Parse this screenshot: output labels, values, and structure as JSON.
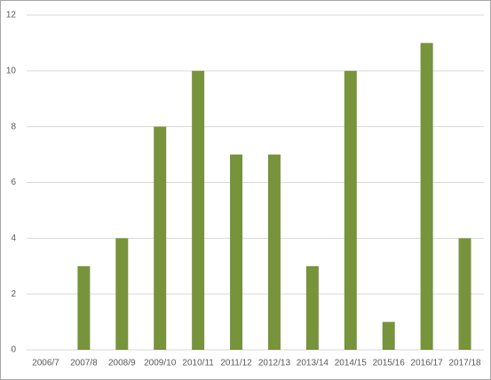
{
  "chart_data": {
    "type": "bar",
    "categories": [
      "2006/7",
      "2007/8",
      "2008/9",
      "2009/10",
      "2010/11",
      "2011/12",
      "2012/13",
      "2013/14",
      "2014/15",
      "2015/16",
      "2016/17",
      "2017/18"
    ],
    "values": [
      0,
      3,
      4,
      8,
      10,
      7,
      7,
      3,
      10,
      1,
      11,
      4
    ],
    "color": "#77933c",
    "ylim": [
      0,
      12
    ],
    "yticks": [
      0,
      2,
      4,
      6,
      8,
      10,
      12
    ],
    "grid": true
  }
}
